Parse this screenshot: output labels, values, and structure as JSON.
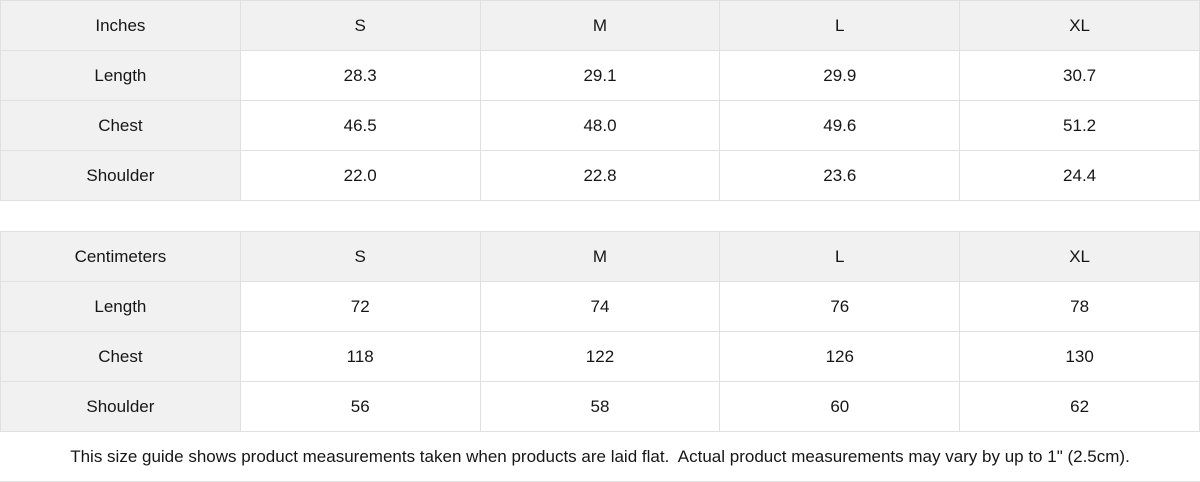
{
  "tables": [
    {
      "unit_label": "Inches",
      "sizes": [
        "S",
        "M",
        "L",
        "XL"
      ],
      "rows": [
        {
          "label": "Length",
          "values": [
            "28.3",
            "29.1",
            "29.9",
            "30.7"
          ]
        },
        {
          "label": "Chest",
          "values": [
            "46.5",
            "48.0",
            "49.6",
            "51.2"
          ]
        },
        {
          "label": "Shoulder",
          "values": [
            "22.0",
            "22.8",
            "23.6",
            "24.4"
          ]
        }
      ]
    },
    {
      "unit_label": "Centimeters",
      "sizes": [
        "S",
        "M",
        "L",
        "XL"
      ],
      "rows": [
        {
          "label": "Length",
          "values": [
            "72",
            "74",
            "76",
            "78"
          ]
        },
        {
          "label": "Chest",
          "values": [
            "118",
            "122",
            "126",
            "130"
          ]
        },
        {
          "label": "Shoulder",
          "values": [
            "56",
            "58",
            "60",
            "62"
          ]
        }
      ]
    }
  ],
  "footer_note": "This size guide shows product measurements taken when products are laid flat.  Actual product measurements may vary by up to 1\" (2.5cm).",
  "colors": {
    "header_bg": "#f1f1f1",
    "cell_bg": "#ffffff",
    "border": "#e0e0e0",
    "text": "#161616"
  }
}
